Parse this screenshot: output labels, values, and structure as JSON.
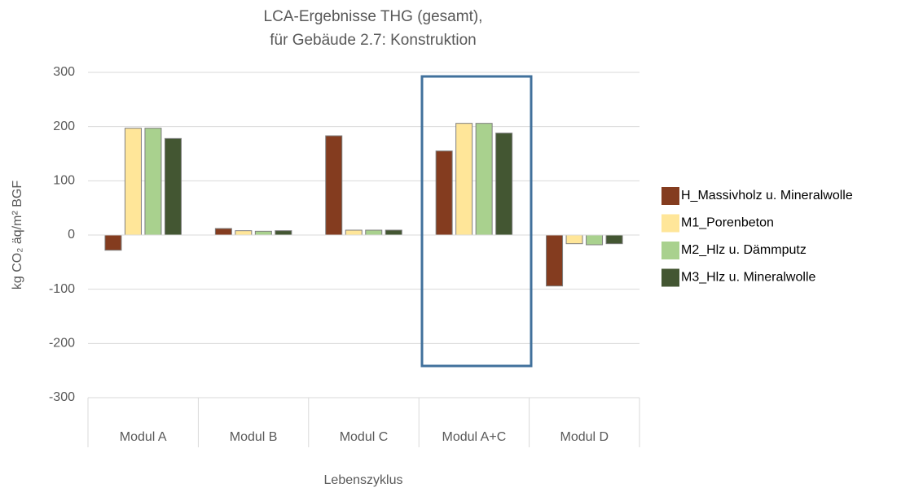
{
  "chart_data": {
    "type": "bar",
    "title": [
      "LCA-Ergebnisse THG (gesamt),",
      "für Gebäude 2.7: Konstruktion"
    ],
    "x_label": "Lebenszyklus",
    "y_label": "kg CO₂ äq/m² BGF",
    "categories": [
      "Modul A",
      "Modul B",
      "Modul C",
      "Modul A+C",
      "Modul D"
    ],
    "series": [
      {
        "name": "H_Massivholz u. Mineralwolle",
        "color": "#843c1f",
        "values": [
          -28,
          12,
          183,
          155,
          -94
        ]
      },
      {
        "name": "M1_Porenbeton",
        "color": "#ffe699",
        "values": [
          197,
          8,
          9,
          206,
          -16
        ]
      },
      {
        "name": "M2_Hlz u. Dämmputz",
        "color": "#a9d18e",
        "values": [
          197,
          7,
          9,
          206,
          -18
        ]
      },
      {
        "name": "M3_Hlz u. Mineralwolle",
        "color": "#435632",
        "values": [
          178,
          8,
          9,
          188,
          -16
        ]
      }
    ],
    "ylim": [
      -300,
      300
    ],
    "yticks": [
      -300,
      -200,
      -100,
      0,
      100,
      200,
      300
    ],
    "grid": true,
    "legend": "right"
  }
}
